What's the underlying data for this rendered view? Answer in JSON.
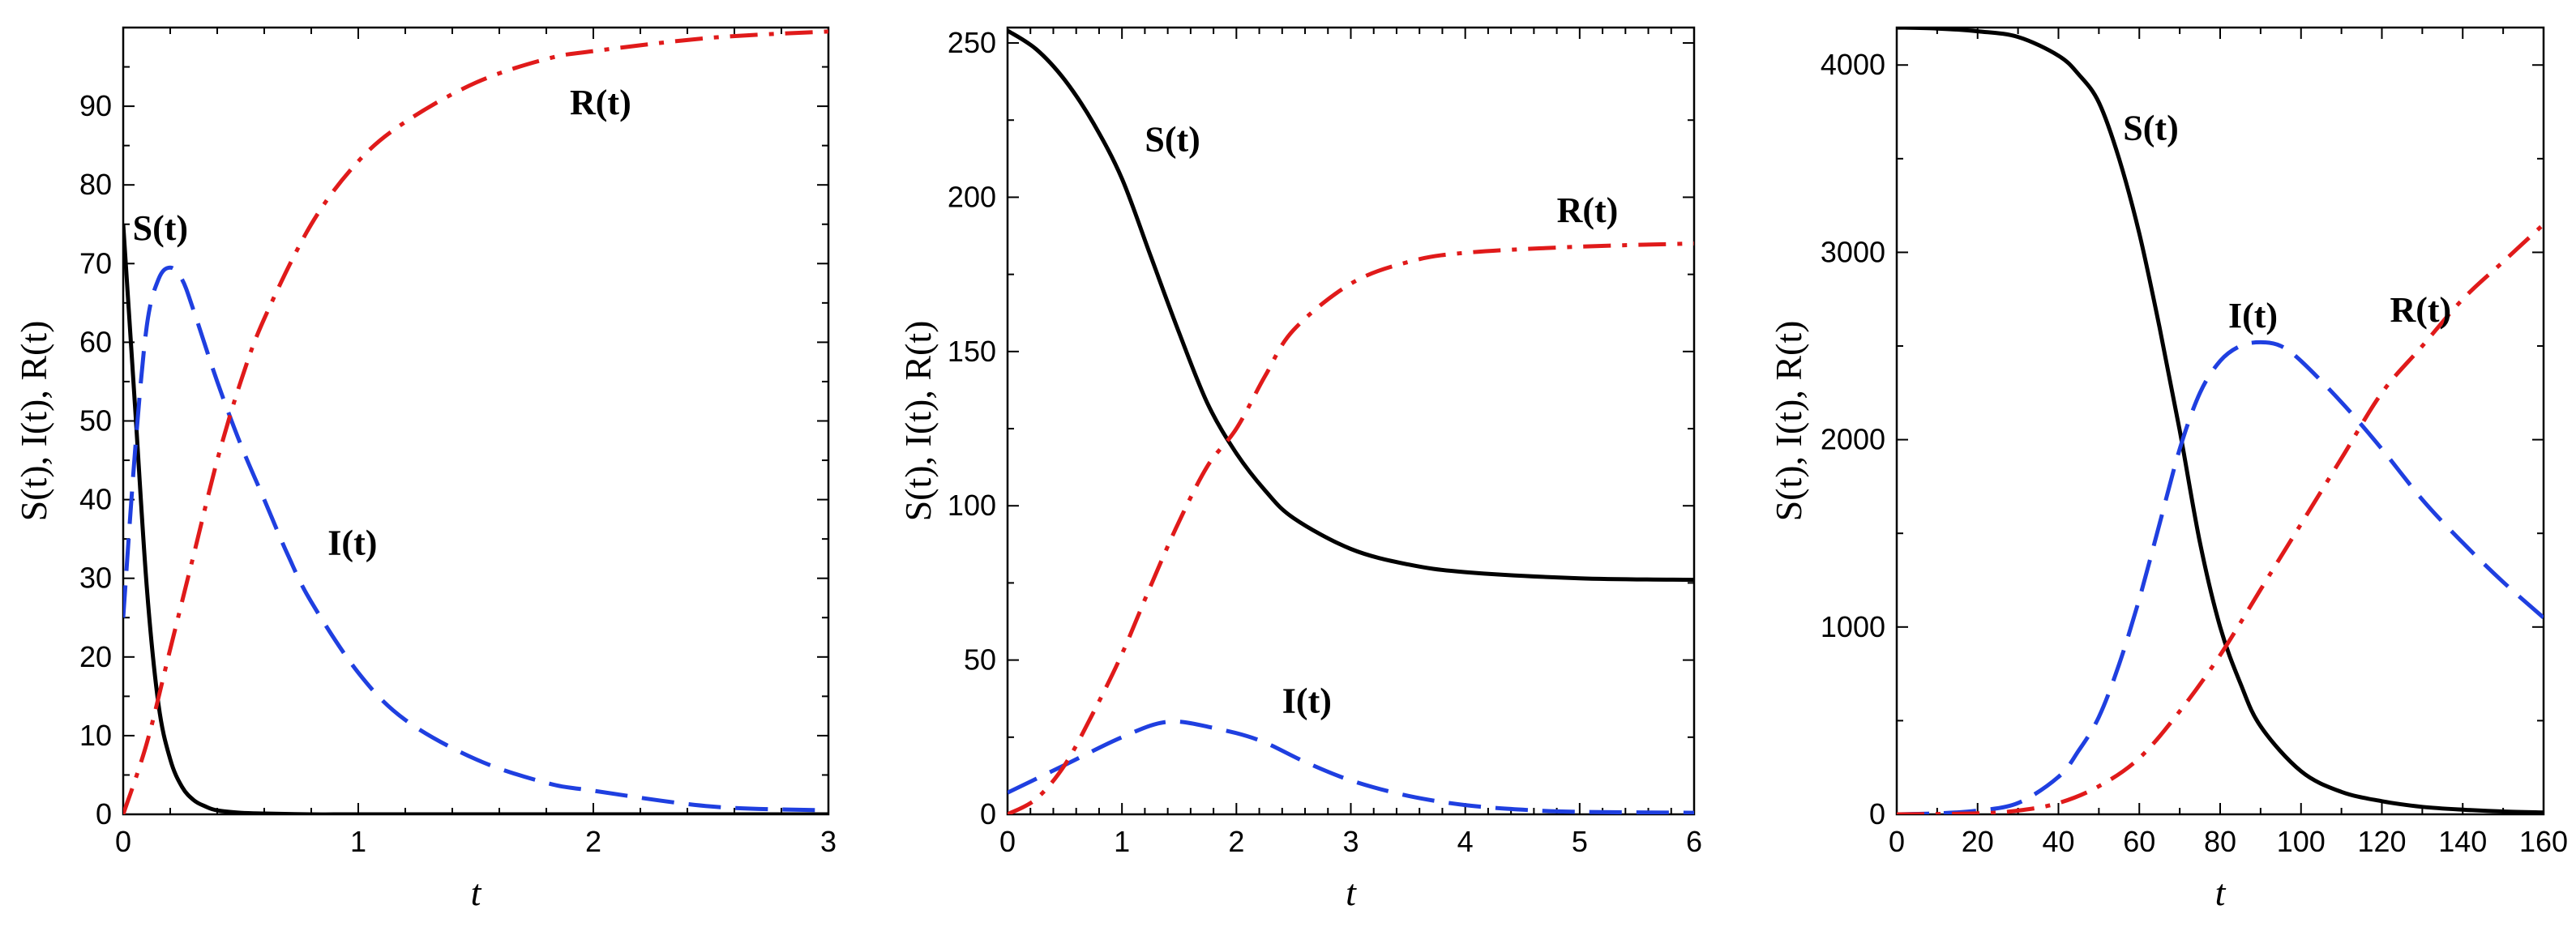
{
  "chart_data": [
    {
      "type": "line",
      "xlabel": "t",
      "ylabel": "S(t), I(t), R(t)",
      "xlim": [
        0,
        3
      ],
      "ylim": [
        0,
        100
      ],
      "xticks": [
        0,
        1,
        2,
        3
      ],
      "yticks": [
        0,
        10,
        20,
        30,
        40,
        50,
        60,
        70,
        80,
        90
      ],
      "series": [
        {
          "name": "S(t)",
          "color": "#000000",
          "style": "solid",
          "x": [
            0,
            0.05,
            0.1,
            0.15,
            0.2,
            0.25,
            0.3,
            0.35,
            0.4,
            0.5,
            0.6,
            0.8,
            1.0,
            1.5,
            2.0,
            2.5,
            3.0
          ],
          "y": [
            75,
            52,
            29,
            14,
            7,
            3.5,
            1.8,
            1,
            0.5,
            0.2,
            0.1,
            0,
            0,
            0,
            0,
            0,
            0
          ]
        },
        {
          "name": "I(t)",
          "color": "#1f3fe0",
          "style": "dashed",
          "x": [
            0,
            0.05,
            0.1,
            0.15,
            0.2,
            0.25,
            0.3,
            0.4,
            0.5,
            0.6,
            0.7,
            0.8,
            1.0,
            1.2,
            1.5,
            1.8,
            2.0,
            2.5,
            3.0
          ],
          "y": [
            25,
            46,
            62,
            68,
            69.5,
            68,
            64,
            55,
            47,
            40,
            33,
            27,
            18,
            12,
            7,
            4,
            3,
            1,
            0.5
          ]
        },
        {
          "name": "R(t)",
          "color": "#e01a1a",
          "style": "dashdot",
          "x": [
            0,
            0.1,
            0.2,
            0.3,
            0.4,
            0.5,
            0.6,
            0.8,
            1.0,
            1.2,
            1.5,
            1.8,
            2.0,
            2.5,
            3.0
          ],
          "y": [
            0,
            9,
            21,
            33,
            45,
            55,
            63,
            75,
            83,
            88,
            93,
            96,
            97,
            98.7,
            99.5
          ]
        }
      ],
      "annotations": [
        {
          "text": "S(t)",
          "x": 0.04,
          "y": 73
        },
        {
          "text": "I(t)",
          "x": 0.87,
          "y": 33
        },
        {
          "text": "R(t)",
          "x": 1.9,
          "y": 89
        }
      ]
    },
    {
      "type": "line",
      "xlabel": "t",
      "ylabel": "S(t), I(t), R(t)",
      "xlim": [
        0,
        6
      ],
      "ylim": [
        0,
        255
      ],
      "xticks": [
        0,
        1,
        2,
        3,
        4,
        5,
        6
      ],
      "yticks": [
        0,
        50,
        100,
        150,
        200,
        250
      ],
      "series": [
        {
          "name": "S(t)",
          "color": "#000000",
          "style": "solid",
          "x": [
            0,
            0.25,
            0.5,
            0.75,
            1.0,
            1.25,
            1.5,
            1.75,
            2.0,
            2.25,
            2.5,
            3.0,
            3.5,
            4.0,
            5.0,
            6.0
          ],
          "y": [
            254,
            248,
            238,
            224,
            206,
            181,
            156,
            133,
            117,
            105,
            96,
            86,
            81,
            78.5,
            76.5,
            76
          ]
        },
        {
          "name": "I(t)",
          "color": "#1f3fe0",
          "style": "dashed",
          "x": [
            0,
            0.5,
            1.0,
            1.4,
            1.8,
            2.2,
            2.6,
            3.0,
            3.5,
            4.0,
            4.5,
            5.0,
            6.0
          ],
          "y": [
            7,
            16,
            25,
            30,
            28,
            24,
            17,
            11,
            6,
            3,
            1.5,
            0.8,
            0.5
          ]
        },
        {
          "name": "R(t)",
          "color": "#e01a1a",
          "style": "dashdot",
          "x": [
            0,
            0.25,
            0.5,
            0.75,
            1.0,
            1.25,
            1.5,
            1.75,
            2.0,
            2.25,
            2.5,
            3.0,
            3.5,
            4.0,
            5.0,
            6.0
          ],
          "y": [
            0,
            5,
            16,
            33,
            52,
            74,
            95,
            113,
            125,
            142,
            157,
            172,
            179,
            182,
            184,
            185
          ]
        }
      ],
      "annotations": [
        {
          "text": "S(t)",
          "x": 1.2,
          "y": 215
        },
        {
          "text": "R(t)",
          "x": 4.8,
          "y": 192
        },
        {
          "text": "I(t)",
          "x": 2.4,
          "y": 33
        }
      ]
    },
    {
      "type": "line",
      "xlabel": "t",
      "ylabel": "S(t), I(t), R(t)",
      "xlim": [
        0,
        160
      ],
      "ylim": [
        0,
        4200
      ],
      "xticks": [
        0,
        20,
        40,
        60,
        80,
        100,
        120,
        140,
        160
      ],
      "yticks": [
        0,
        1000,
        2000,
        3000,
        4000
      ],
      "series": [
        {
          "name": "S(t)",
          "color": "#000000",
          "style": "solid",
          "x": [
            0,
            10,
            20,
            30,
            40,
            45,
            50,
            55,
            60,
            65,
            70,
            75,
            80,
            85,
            90,
            100,
            110,
            120,
            130,
            140,
            150,
            160
          ],
          "y": [
            4200,
            4195,
            4180,
            4150,
            4050,
            3950,
            3800,
            3500,
            3100,
            2600,
            2050,
            1450,
            1000,
            700,
            470,
            230,
            120,
            70,
            40,
            25,
            15,
            10
          ]
        },
        {
          "name": "I(t)",
          "color": "#1f3fe0",
          "style": "dashed",
          "x": [
            0,
            10,
            20,
            30,
            40,
            45,
            50,
            55,
            60,
            65,
            70,
            75,
            80,
            85,
            90,
            95,
            100,
            110,
            120,
            130,
            140,
            150,
            160
          ],
          "y": [
            0,
            5,
            20,
            60,
            200,
            340,
            520,
            800,
            1150,
            1550,
            1950,
            2250,
            2420,
            2500,
            2520,
            2500,
            2420,
            2200,
            1950,
            1680,
            1450,
            1240,
            1050
          ]
        },
        {
          "name": "R(t)",
          "color": "#e01a1a",
          "style": "dashdot",
          "x": [
            0,
            20,
            30,
            40,
            50,
            60,
            70,
            80,
            90,
            100,
            110,
            120,
            130,
            140,
            150,
            160
          ],
          "y": [
            0,
            5,
            20,
            60,
            150,
            300,
            550,
            850,
            1200,
            1550,
            1900,
            2250,
            2500,
            2750,
            2950,
            3150
          ]
        }
      ],
      "annotations": [
        {
          "text": "S(t)",
          "x": 56,
          "y": 3600
        },
        {
          "text": "I(t)",
          "x": 82,
          "y": 2600
        },
        {
          "text": "R(t)",
          "x": 122,
          "y": 2630
        }
      ]
    }
  ]
}
